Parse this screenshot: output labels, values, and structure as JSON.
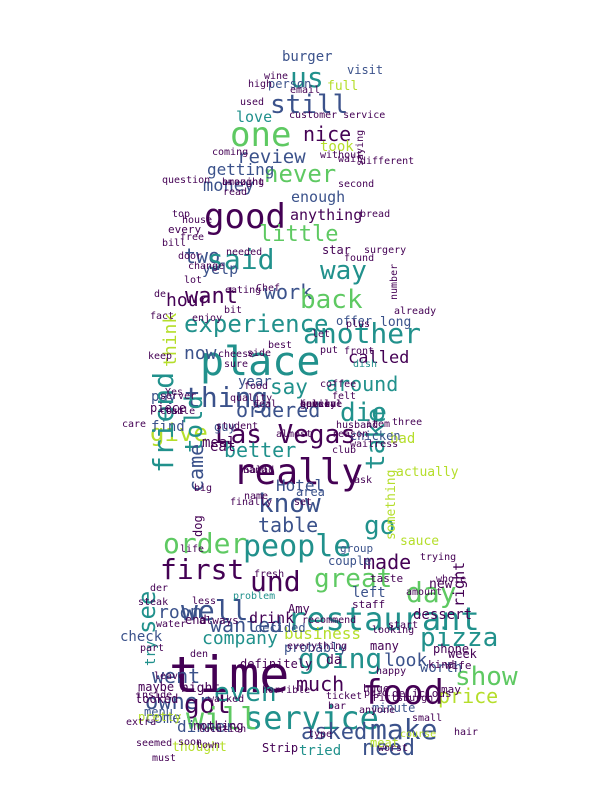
{
  "palette": {
    "dark": "#440154",
    "indigo": "#3b528b",
    "teal": "#21918c",
    "green": "#5ec962",
    "yellow": "#b5de2b"
  },
  "words": [
    {
      "text": "burger",
      "c": "indigo"
    },
    {
      "text": "us",
      "c": "teal"
    },
    {
      "text": "visit",
      "c": "indigo"
    },
    {
      "text": "still",
      "c": "indigo"
    },
    {
      "text": "full",
      "c": "yellow"
    },
    {
      "text": "person",
      "c": "indigo"
    },
    {
      "text": "love",
      "c": "teal"
    },
    {
      "text": "one",
      "c": "green"
    },
    {
      "text": "nice",
      "c": "dark"
    },
    {
      "text": "customer service",
      "c": "dark"
    },
    {
      "text": "took",
      "c": "yellow"
    },
    {
      "text": "review",
      "c": "indigo"
    },
    {
      "text": "without",
      "c": "dark"
    },
    {
      "text": "never",
      "c": "green"
    },
    {
      "text": "getting",
      "c": "indigo"
    },
    {
      "text": "money",
      "c": "indigo"
    },
    {
      "text": "enough",
      "c": "indigo"
    },
    {
      "text": "good",
      "c": "dark"
    },
    {
      "text": "anything",
      "c": "dark"
    },
    {
      "text": "little",
      "c": "green"
    },
    {
      "text": "every",
      "c": "dark"
    },
    {
      "text": "two",
      "c": "indigo"
    },
    {
      "text": "said",
      "c": "teal"
    },
    {
      "text": "star",
      "c": "dark"
    },
    {
      "text": "way",
      "c": "teal"
    },
    {
      "text": "yelp",
      "c": "indigo"
    },
    {
      "text": "hour",
      "c": "dark"
    },
    {
      "text": "want",
      "c": "dark"
    },
    {
      "text": "work",
      "c": "indigo"
    },
    {
      "text": "back",
      "c": "green"
    },
    {
      "text": "experience",
      "c": "teal"
    },
    {
      "text": "another",
      "c": "teal"
    },
    {
      "text": "place",
      "c": "teal"
    },
    {
      "text": "think",
      "c": "yellow"
    },
    {
      "text": "now",
      "c": "indigo"
    },
    {
      "text": "called",
      "c": "dark"
    },
    {
      "text": "long",
      "c": "indigo"
    },
    {
      "text": "thing",
      "c": "indigo"
    },
    {
      "text": "say",
      "c": "teal"
    },
    {
      "text": "around",
      "c": "teal"
    },
    {
      "text": "year",
      "c": "indigo"
    },
    {
      "text": "pay",
      "c": "indigo"
    },
    {
      "text": "ordered",
      "c": "indigo"
    },
    {
      "text": "die",
      "c": "teal"
    },
    {
      "text": "give",
      "c": "yellow"
    },
    {
      "text": "Las Vegas",
      "c": "dark"
    },
    {
      "text": "told",
      "c": "teal"
    },
    {
      "text": "better",
      "c": "teal"
    },
    {
      "text": "find",
      "c": "indigo"
    },
    {
      "text": "eat",
      "c": "dark"
    },
    {
      "text": "bad",
      "c": "yellow"
    },
    {
      "text": "really",
      "c": "dark"
    },
    {
      "text": "take",
      "c": "teal"
    },
    {
      "text": "friend",
      "c": "teal"
    },
    {
      "text": "came",
      "c": "indigo"
    },
    {
      "text": "know",
      "c": "indigo"
    },
    {
      "text": "table",
      "c": "indigo"
    },
    {
      "text": "go",
      "c": "teal"
    },
    {
      "text": "order",
      "c": "green"
    },
    {
      "text": "people",
      "c": "teal"
    },
    {
      "text": "made",
      "c": "dark"
    },
    {
      "text": "first",
      "c": "dark"
    },
    {
      "text": "und",
      "c": "dark"
    },
    {
      "text": "great",
      "c": "green"
    },
    {
      "text": "day",
      "c": "green"
    },
    {
      "text": "room",
      "c": "indigo"
    },
    {
      "text": "restaurant",
      "c": "teal"
    },
    {
      "text": "pizza",
      "c": "teal"
    },
    {
      "text": "well",
      "c": "indigo"
    },
    {
      "text": "wanted",
      "c": "indigo"
    },
    {
      "text": "business",
      "c": "yellow"
    },
    {
      "text": "time",
      "c": "dark"
    },
    {
      "text": "see",
      "c": "teal"
    },
    {
      "text": "company",
      "c": "teal"
    },
    {
      "text": "going",
      "c": "teal"
    },
    {
      "text": "look",
      "c": "indigo"
    },
    {
      "text": "went",
      "c": "indigo"
    },
    {
      "text": "try",
      "c": "teal"
    },
    {
      "text": "show",
      "c": "green"
    },
    {
      "text": "owner",
      "c": "indigo"
    },
    {
      "text": "got",
      "c": "dark"
    },
    {
      "text": "even",
      "c": "teal"
    },
    {
      "text": "much",
      "c": "dark"
    },
    {
      "text": "price",
      "c": "yellow"
    },
    {
      "text": "food",
      "c": "dark"
    },
    {
      "text": "service",
      "c": "teal"
    },
    {
      "text": "will",
      "c": "green"
    },
    {
      "text": "asked",
      "c": "indigo"
    },
    {
      "text": "make",
      "c": "indigo"
    },
    {
      "text": "need",
      "c": "indigo"
    },
    {
      "text": "dinner",
      "c": "indigo"
    },
    {
      "text": "come",
      "c": "indigo"
    },
    {
      "text": "thought",
      "c": "yellow"
    },
    {
      "text": "tried",
      "c": "teal"
    },
    {
      "text": "minute",
      "c": "indigo"
    },
    {
      "text": "dessert",
      "c": "dark"
    },
    {
      "text": "menu",
      "c": "indigo"
    },
    {
      "text": "probably",
      "c": "indigo"
    },
    {
      "text": "drink",
      "c": "dark"
    },
    {
      "text": "decided",
      "c": "indigo"
    },
    {
      "text": "sauce",
      "c": "yellow"
    },
    {
      "text": "Hotel",
      "c": "indigo"
    },
    {
      "text": "meal",
      "c": "dark"
    },
    {
      "text": "guy",
      "c": "indigo"
    },
    {
      "text": "offer",
      "c": "indigo"
    },
    {
      "text": "left",
      "c": "indigo"
    },
    {
      "text": "right",
      "c": "dark"
    },
    {
      "text": "night",
      "c": "dark"
    },
    {
      "text": "check",
      "c": "indigo"
    },
    {
      "text": "da",
      "c": "dark"
    },
    {
      "text": "worth",
      "c": "indigo"
    },
    {
      "text": "many",
      "c": "dark"
    },
    {
      "text": "area",
      "c": "indigo"
    },
    {
      "text": "dog",
      "c": "dark"
    },
    {
      "text": "couple",
      "c": "indigo"
    },
    {
      "text": "group",
      "c": "indigo"
    },
    {
      "text": "chicken",
      "c": "indigo"
    },
    {
      "text": "new",
      "c": "dark"
    },
    {
      "text": "something",
      "c": "yellow"
    },
    {
      "text": "actually",
      "c": "yellow"
    },
    {
      "text": "taste",
      "c": "dark"
    },
    {
      "text": "looked",
      "c": "dark"
    },
    {
      "text": "pretty",
      "c": "yellow"
    },
    {
      "text": "maybe",
      "c": "dark"
    },
    {
      "text": "week",
      "c": "dark"
    },
    {
      "text": "may",
      "c": "dark"
    },
    {
      "text": "wife",
      "c": "dark"
    },
    {
      "text": "kind",
      "c": "dark"
    },
    {
      "text": "piece",
      "c": "dark"
    },
    {
      "text": "end",
      "c": "dark"
    },
    {
      "text": "sure",
      "c": "dark"
    },
    {
      "text": "best",
      "c": "dark"
    },
    {
      "text": "quality",
      "c": "dark"
    },
    {
      "text": "always",
      "c": "dark"
    },
    {
      "text": "fresh",
      "c": "dark"
    },
    {
      "text": "ticket",
      "c": "dark"
    },
    {
      "text": "nothing",
      "c": "dark"
    },
    {
      "text": "definitely",
      "c": "dark"
    },
    {
      "text": "problem",
      "c": "teal"
    },
    {
      "text": "staff",
      "c": "dark"
    },
    {
      "text": "Amy",
      "c": "dark"
    },
    {
      "text": "everything",
      "c": "dark"
    },
    {
      "text": "delicious",
      "c": "dark"
    },
    {
      "text": "happy",
      "c": "dark"
    },
    {
      "text": "huge",
      "c": "dark"
    },
    {
      "text": "bar",
      "c": "dark"
    },
    {
      "text": "top",
      "c": "dark"
    },
    {
      "text": "wait",
      "c": "dark"
    },
    {
      "text": "Strip",
      "c": "dark"
    },
    {
      "text": "dish",
      "c": "teal"
    },
    {
      "text": "food",
      "c": "dark"
    },
    {
      "text": "front",
      "c": "dark"
    },
    {
      "text": "reason",
      "c": "dark"
    },
    {
      "text": "location",
      "c": "dark"
    },
    {
      "text": "student",
      "c": "dark"
    },
    {
      "text": "ask",
      "c": "dark"
    },
    {
      "text": "side",
      "c": "dark"
    },
    {
      "text": "set",
      "c": "dark"
    },
    {
      "text": "den",
      "c": "dark"
    },
    {
      "text": "der",
      "c": "dark"
    },
    {
      "text": "Yes",
      "c": "dark"
    },
    {
      "text": "cost",
      "c": "dark"
    },
    {
      "text": "keep",
      "c": "dark"
    },
    {
      "text": "deal",
      "c": "dark"
    },
    {
      "text": "felt",
      "c": "dark"
    },
    {
      "text": "item",
      "c": "dark"
    },
    {
      "text": "club",
      "c": "dark"
    },
    {
      "text": "three",
      "c": "dark"
    },
    {
      "text": "coffee",
      "c": "dark"
    },
    {
      "text": "hand",
      "c": "dark"
    },
    {
      "text": "name",
      "c": "dark"
    },
    {
      "text": "water",
      "c": "dark"
    },
    {
      "text": "inside",
      "c": "dark"
    },
    {
      "text": "steak",
      "c": "dark"
    },
    {
      "text": "less",
      "c": "dark"
    },
    {
      "text": "amount",
      "c": "dark"
    },
    {
      "text": "paid",
      "c": "dark"
    },
    {
      "text": "phone",
      "c": "dark"
    },
    {
      "text": "Pittsburgh",
      "c": "dark"
    },
    {
      "text": "anyone",
      "c": "dark"
    },
    {
      "text": "meat",
      "c": "yellow"
    },
    {
      "text": "hair",
      "c": "dark"
    },
    {
      "text": "small",
      "c": "dark"
    },
    {
      "text": "worst",
      "c": "dark"
    },
    {
      "text": "course",
      "c": "yellow"
    },
    {
      "text": "type",
      "c": "dark"
    },
    {
      "text": "town",
      "c": "dark"
    },
    {
      "text": "must",
      "c": "dark"
    },
    {
      "text": "seemed",
      "c": "dark"
    },
    {
      "text": "walked",
      "c": "dark"
    },
    {
      "text": "leave",
      "c": "dark"
    },
    {
      "text": "looking",
      "c": "dark"
    },
    {
      "text": "eating",
      "c": "dark"
    },
    {
      "text": "already",
      "c": "dark"
    },
    {
      "text": "recommend",
      "c": "dark"
    },
    {
      "text": "bit",
      "c": "dark"
    },
    {
      "text": "lot",
      "c": "dark"
    },
    {
      "text": "de",
      "c": "dark"
    },
    {
      "text": "question",
      "c": "dark"
    },
    {
      "text": "read",
      "c": "dark"
    },
    {
      "text": "amazing",
      "c": "dark"
    },
    {
      "text": "coming",
      "c": "dark"
    },
    {
      "text": "bill",
      "c": "dark"
    },
    {
      "text": "different",
      "c": "dark"
    },
    {
      "text": "second",
      "c": "dark"
    },
    {
      "text": "house",
      "c": "dark"
    },
    {
      "text": "free",
      "c": "dark"
    },
    {
      "text": "needed",
      "c": "dark"
    },
    {
      "text": "change",
      "c": "dark"
    },
    {
      "text": "door",
      "c": "dark"
    },
    {
      "text": "high",
      "c": "dark"
    },
    {
      "text": "wine",
      "c": "dark"
    },
    {
      "text": "email",
      "c": "dark"
    },
    {
      "text": "used",
      "c": "dark"
    },
    {
      "text": "bread",
      "c": "dark"
    },
    {
      "text": "Chef",
      "c": "dark"
    },
    {
      "text": "found",
      "c": "dark"
    },
    {
      "text": "surgery",
      "c": "dark"
    },
    {
      "text": "care",
      "c": "dark"
    },
    {
      "text": "big",
      "c": "dark"
    },
    {
      "text": "table",
      "c": "dark"
    },
    {
      "text": "husband",
      "c": "dark"
    },
    {
      "text": "waitress",
      "c": "dark"
    },
    {
      "text": "Salad",
      "c": "dark"
    },
    {
      "text": "finally",
      "c": "dark"
    },
    {
      "text": "life",
      "c": "dark"
    },
    {
      "text": "trying",
      "c": "dark"
    },
    {
      "text": "whole",
      "c": "dark"
    },
    {
      "text": "start",
      "c": "dark"
    },
    {
      "text": "horrible",
      "c": "dark"
    },
    {
      "text": "soon",
      "c": "dark"
    },
    {
      "text": "part",
      "c": "dark"
    },
    {
      "text": "extra",
      "c": "dark"
    },
    {
      "text": "server",
      "c": "dark"
    },
    {
      "text": "enjoy",
      "c": "dark"
    },
    {
      "text": "cheese",
      "c": "dark"
    },
    {
      "text": "fact",
      "c": "dark"
    },
    {
      "text": "almost",
      "c": "dark"
    },
    {
      "text": "brought",
      "c": "dark"
    },
    {
      "text": "saying",
      "c": "dark"
    },
    {
      "text": "number",
      "c": "dark"
    },
    {
      "text": "let",
      "c": "dark"
    },
    {
      "text": "put",
      "c": "dark"
    },
    {
      "text": "plus",
      "c": "dark"
    },
    {
      "text": "guess",
      "c": "dark"
    },
    {
      "text": "believe",
      "c": "dark"
    },
    {
      "text": "family",
      "c": "dark"
    },
    {
      "text": "option",
      "c": "dark"
    },
    {
      "text": "special",
      "c": "dark"
    },
    {
      "text": "several",
      "c": "dark"
    },
    {
      "text": "Vegas",
      "c": "dark"
    }
  ]
}
